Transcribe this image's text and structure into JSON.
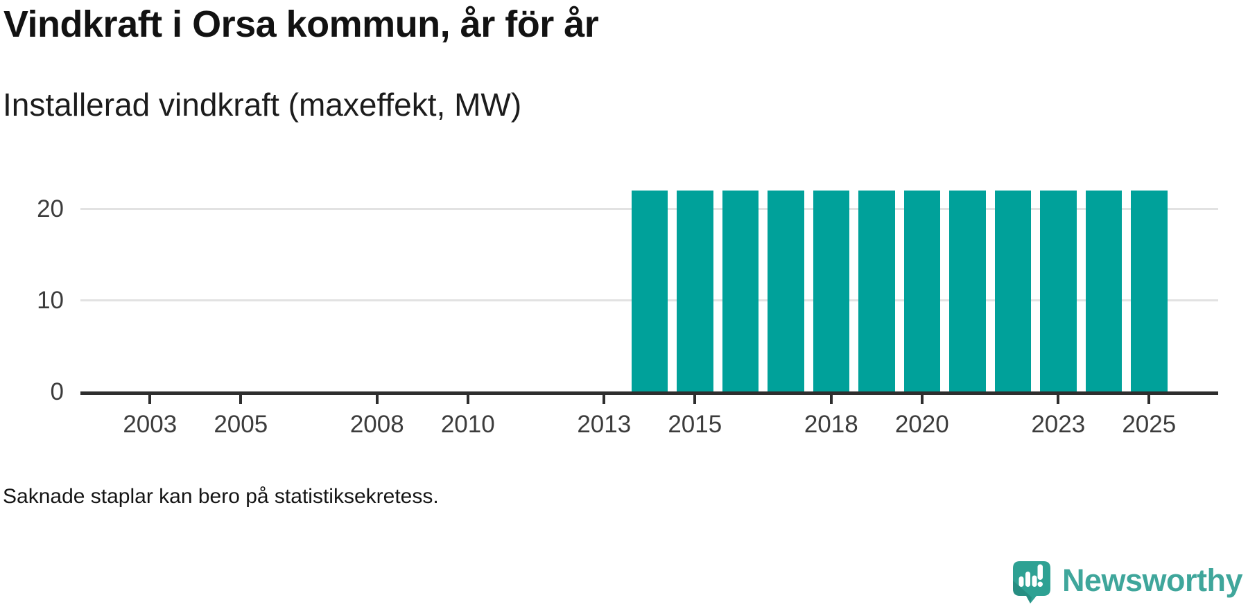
{
  "chart_data": {
    "type": "bar",
    "title": "Vindkraft i Orsa kommun, år för år",
    "subtitle": "Installerad vindkraft (maxeffekt, MW)",
    "note": "Saknade staplar kan bero på statistiksekretess.",
    "unit": "MW",
    "years": [
      2002,
      2003,
      2004,
      2005,
      2006,
      2007,
      2008,
      2009,
      2010,
      2011,
      2012,
      2013,
      2014,
      2015,
      2016,
      2017,
      2018,
      2019,
      2020,
      2021,
      2022,
      2023,
      2024,
      2025
    ],
    "values": [
      null,
      null,
      null,
      null,
      null,
      null,
      null,
      null,
      null,
      null,
      null,
      null,
      22,
      22,
      22,
      22,
      22,
      22,
      22,
      22,
      22,
      22,
      22,
      22
    ],
    "x_tick_labels": [
      "2003",
      "2005",
      "2008",
      "2010",
      "2013",
      "2015",
      "2018",
      "2020",
      "2023",
      "2025"
    ],
    "y_tick_labels": [
      "0",
      "10",
      "20"
    ],
    "y_ticks": [
      0,
      10,
      20
    ],
    "ylim": [
      0,
      25
    ],
    "grid": "horizontal-only",
    "legend": "none",
    "missing_bars_meaning": "Saknade staplar kan bero på statistiksekretess."
  },
  "branding": {
    "name": "Newsworthy",
    "logo_icon": "newsworthy-speech-bubble-bars-icon"
  },
  "colors": {
    "bar": "#00a19a",
    "axis": "#2e2e2e",
    "grid": "#e2e2e2",
    "tick_label": "#3c3c3c",
    "title_text": "#121212",
    "brand_teal": "#3fa69b",
    "brand_bubble": "#2ea193",
    "brand_bubble_shade": "#1f776f"
  }
}
